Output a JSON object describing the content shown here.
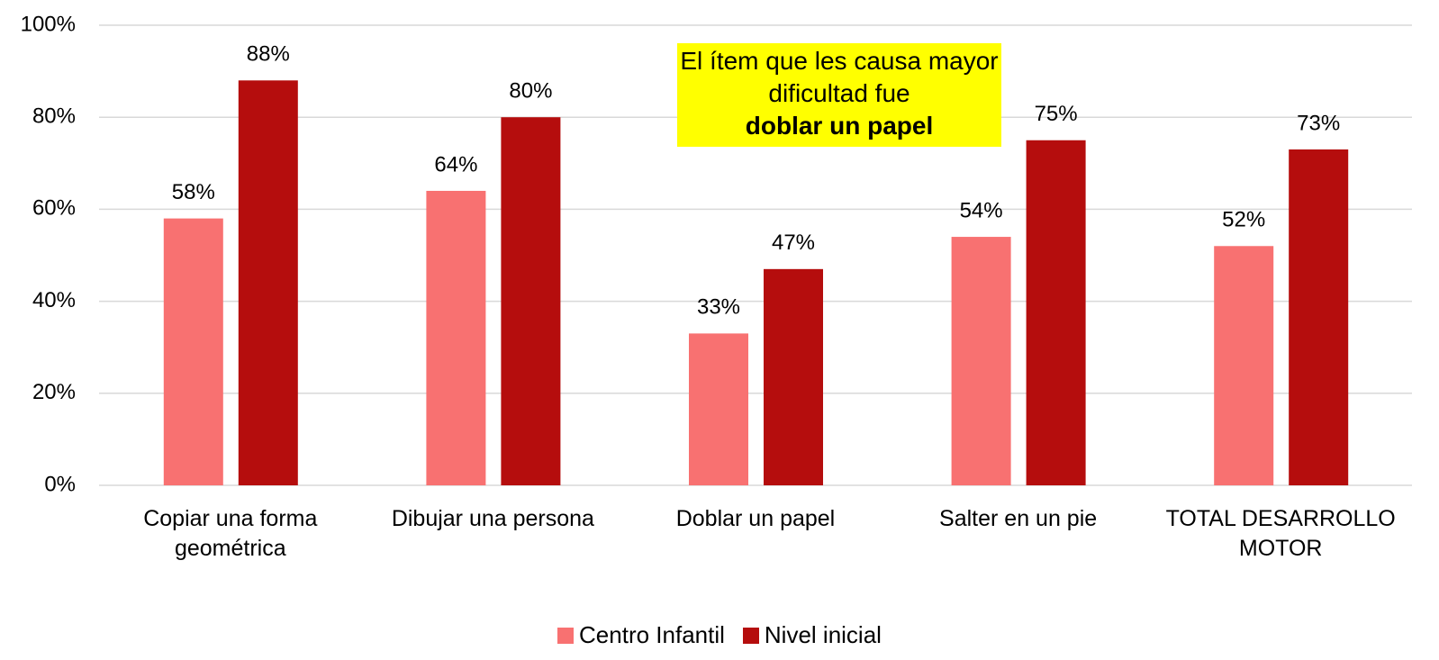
{
  "chart_data": {
    "type": "bar",
    "categories": [
      "Copiar una forma geométrica",
      "Dibujar una persona",
      "Doblar un papel",
      "Salter en un pie",
      "TOTAL DESARROLLO MOTOR"
    ],
    "series": [
      {
        "name": "Centro Infantil",
        "color": "#f87171",
        "values": [
          58,
          64,
          33,
          54,
          52
        ],
        "value_labels": [
          "58%",
          "64%",
          "33%",
          "54%",
          "52%"
        ]
      },
      {
        "name": "Nivel inicial",
        "color": "#b50d0d",
        "values": [
          88,
          80,
          47,
          75,
          73
        ],
        "value_labels": [
          "88%",
          "80%",
          "47%",
          "75%",
          "73%"
        ]
      }
    ],
    "ylim": [
      0,
      100
    ],
    "yticks": [
      {
        "value": 0,
        "label": "0%"
      },
      {
        "value": 20,
        "label": "20%"
      },
      {
        "value": 40,
        "label": "40%"
      },
      {
        "value": 60,
        "label": "60%"
      },
      {
        "value": 80,
        "label": "80%"
      },
      {
        "value": 100,
        "label": "100%"
      }
    ],
    "grid": true,
    "legend": "bottom",
    "annotation": {
      "text": "El ítem que les causa mayor dificultad fue",
      "emphasis": "doblar un papel"
    }
  }
}
